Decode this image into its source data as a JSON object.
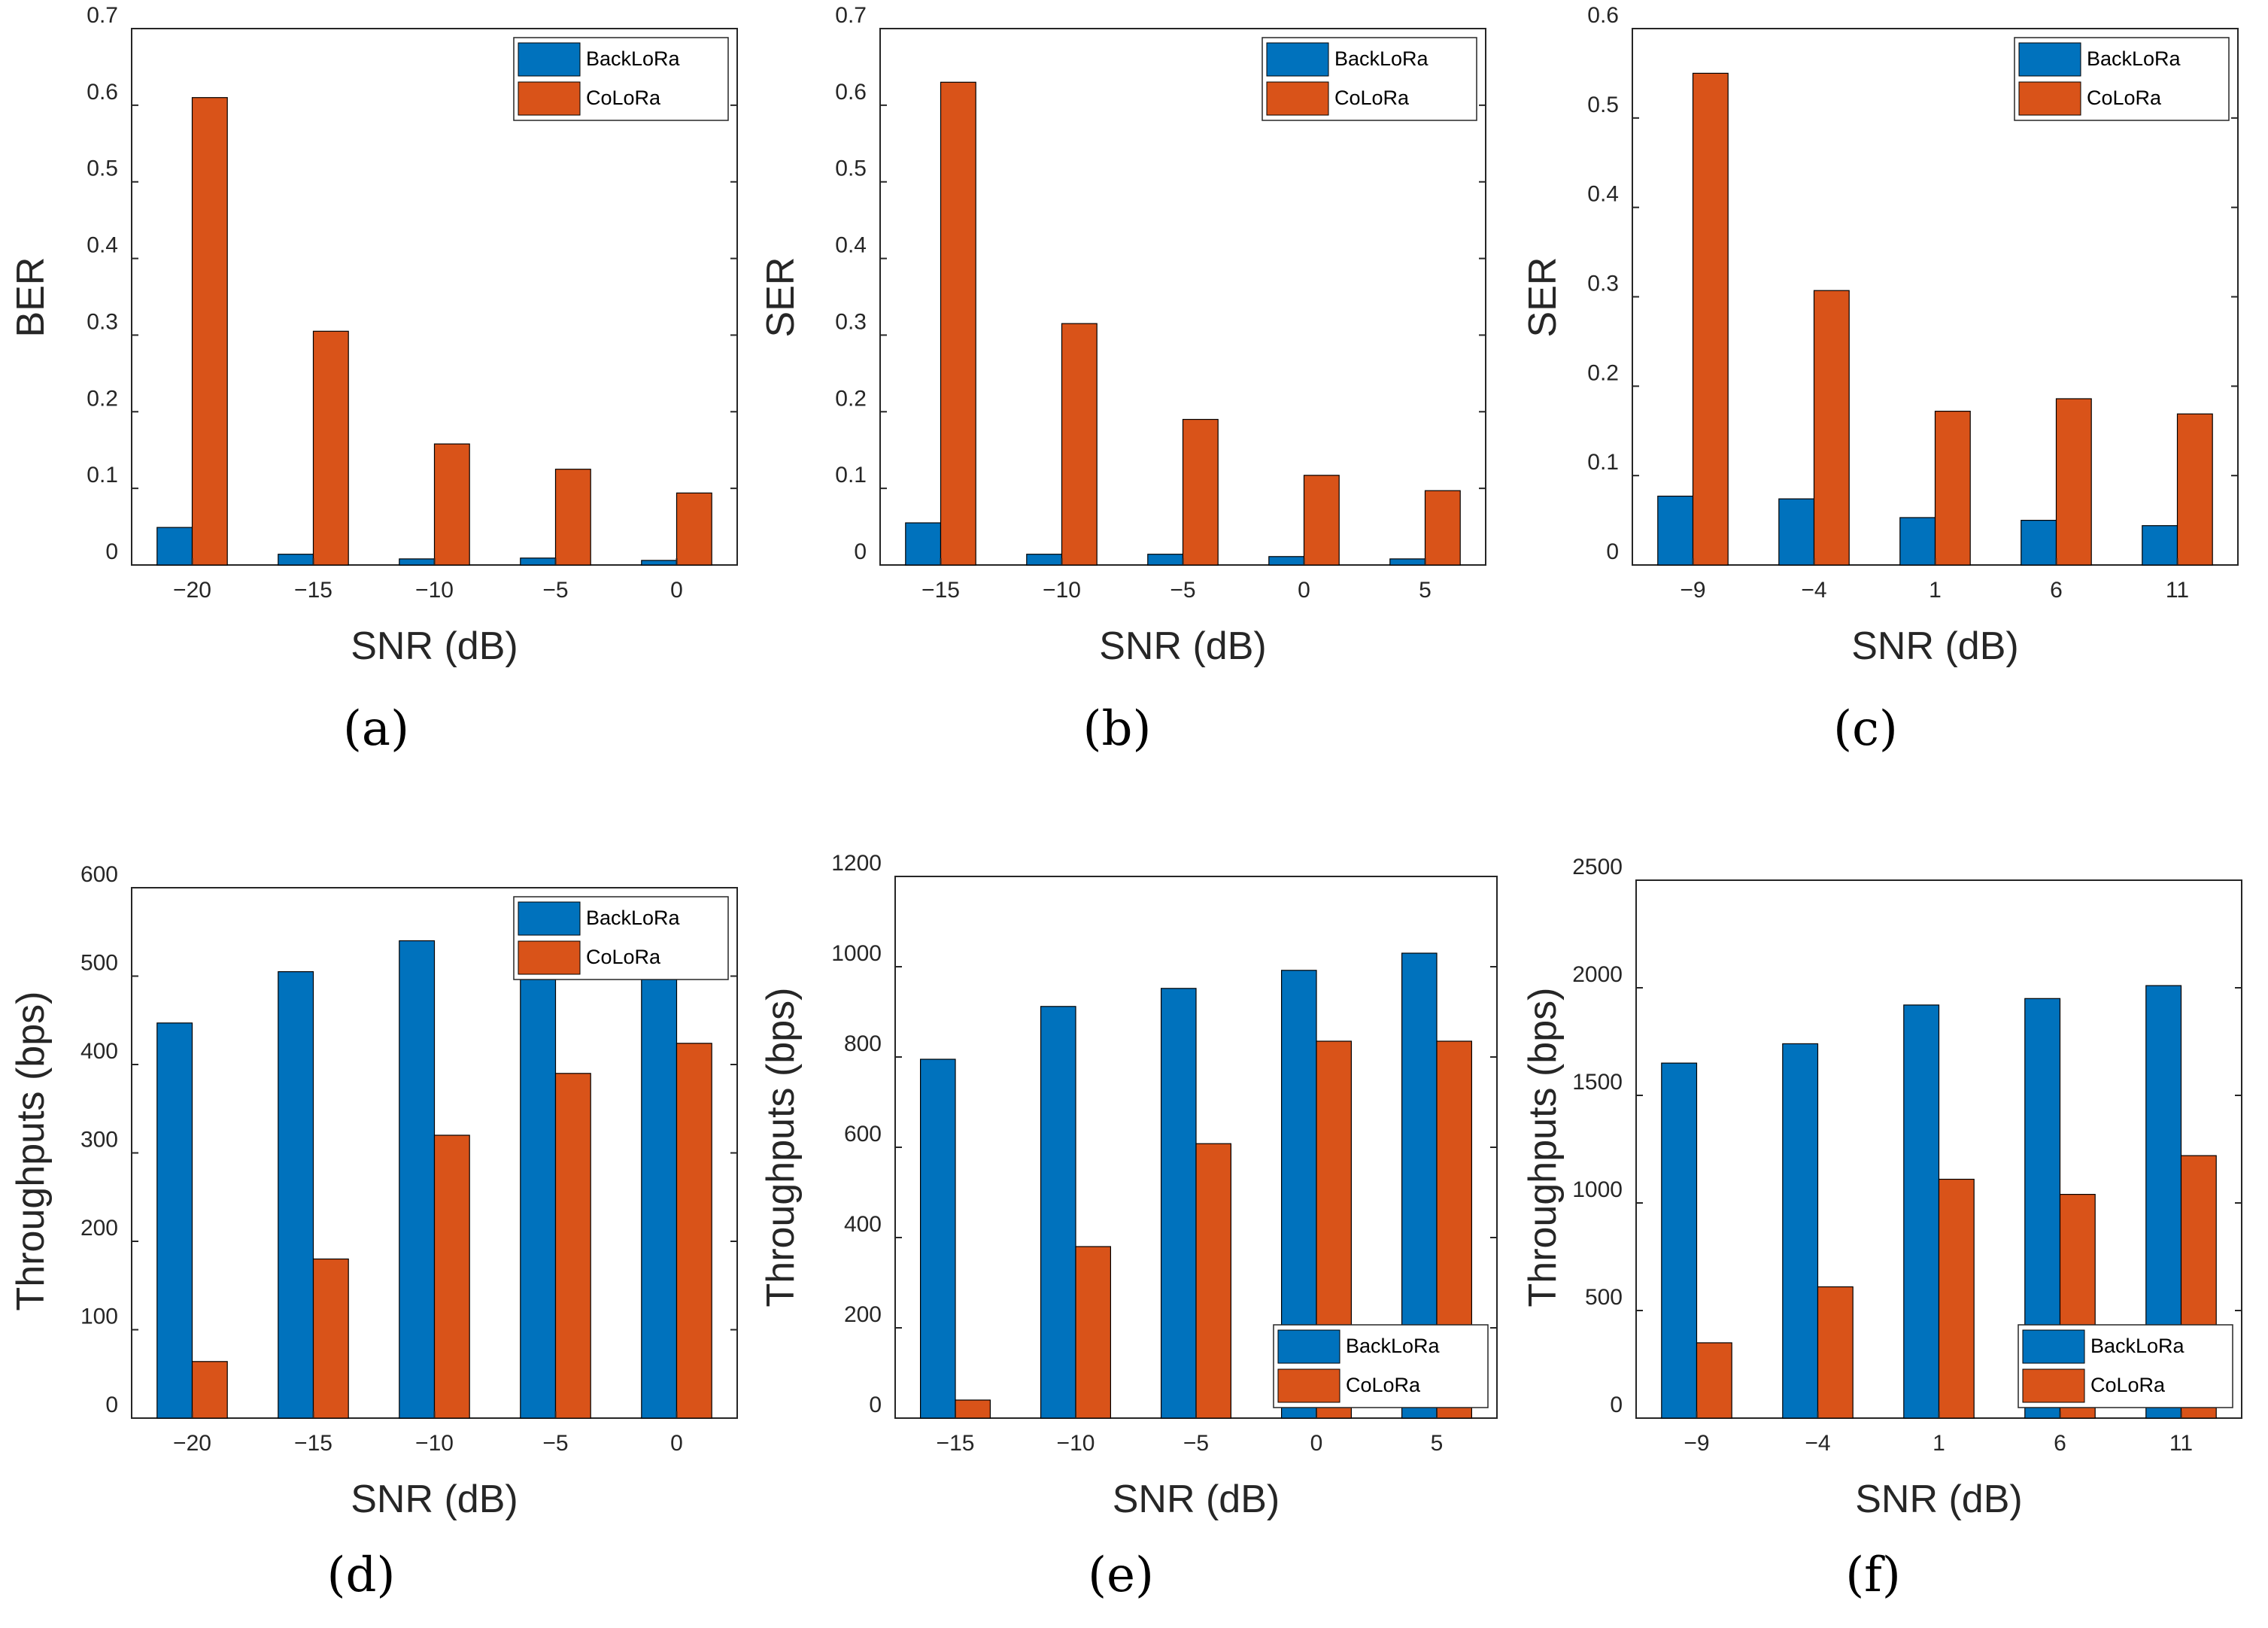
{
  "colors": {
    "BackLoRa": "#0072BD",
    "CoLoRa": "#D95319"
  },
  "chart_data": [
    {
      "type": "bar",
      "panel": "(a)",
      "xlabel": "SNR (dB)",
      "ylabel": "BER",
      "categories": [
        "−20",
        "−15",
        "−10",
        "−5",
        "0"
      ],
      "yticks": [
        "0",
        "0.1",
        "0.2",
        "0.3",
        "0.4",
        "0.5",
        "0.6",
        "0.7"
      ],
      "ylim": [
        0,
        0.7
      ],
      "legend_position": "top-right",
      "series": [
        {
          "name": "BackLoRa",
          "values": [
            0.049,
            0.014,
            0.008,
            0.009,
            0.006
          ]
        },
        {
          "name": "CoLoRa",
          "values": [
            0.61,
            0.305,
            0.158,
            0.125,
            0.094
          ]
        }
      ]
    },
    {
      "type": "bar",
      "panel": "(b)",
      "xlabel": "SNR (dB)",
      "ylabel": "SER",
      "categories": [
        "−15",
        "−10",
        "−5",
        "0",
        "5"
      ],
      "yticks": [
        "0",
        "0.1",
        "0.2",
        "0.3",
        "0.4",
        "0.5",
        "0.6",
        "0.7"
      ],
      "ylim": [
        0,
        0.7
      ],
      "legend_position": "top-right",
      "series": [
        {
          "name": "BackLoRa",
          "values": [
            0.055,
            0.014,
            0.014,
            0.011,
            0.008
          ]
        },
        {
          "name": "CoLoRa",
          "values": [
            0.63,
            0.315,
            0.19,
            0.117,
            0.097
          ]
        }
      ]
    },
    {
      "type": "bar",
      "panel": "(c)",
      "xlabel": "SNR (dB)",
      "ylabel": "SER",
      "categories": [
        "−9",
        "−4",
        "1",
        "6",
        "11"
      ],
      "yticks": [
        "0",
        "0.1",
        "0.2",
        "0.3",
        "0.4",
        "0.5",
        "0.6"
      ],
      "ylim": [
        0,
        0.6
      ],
      "legend_position": "top-right",
      "series": [
        {
          "name": "BackLoRa",
          "values": [
            0.077,
            0.074,
            0.053,
            0.05,
            0.044
          ]
        },
        {
          "name": "CoLoRa",
          "values": [
            0.55,
            0.307,
            0.172,
            0.186,
            0.169
          ]
        }
      ]
    },
    {
      "type": "bar",
      "panel": "(d)",
      "xlabel": "SNR (dB)",
      "ylabel": "Throughputs (bps)",
      "categories": [
        "−20",
        "−15",
        "−10",
        "−5",
        "0"
      ],
      "yticks": [
        "0",
        "100",
        "200",
        "300",
        "400",
        "500",
        "600"
      ],
      "ylim": [
        0,
        600
      ],
      "legend_position": "top-right",
      "series": [
        {
          "name": "BackLoRa",
          "values": [
            447,
            505,
            540,
            515,
            520
          ]
        },
        {
          "name": "CoLoRa",
          "values": [
            64,
            180,
            320,
            390,
            424
          ]
        }
      ]
    },
    {
      "type": "bar",
      "panel": "(e)",
      "xlabel": "SNR (dB)",
      "ylabel": "Throughputs (bps)",
      "categories": [
        "−15",
        "−10",
        "−5",
        "0",
        "5"
      ],
      "yticks": [
        "0",
        "200",
        "400",
        "600",
        "800",
        "1000",
        "1200"
      ],
      "ylim": [
        0,
        1200
      ],
      "legend_position": "bottom-right",
      "series": [
        {
          "name": "BackLoRa",
          "values": [
            795,
            912,
            952,
            992,
            1030
          ]
        },
        {
          "name": "CoLoRa",
          "values": [
            40,
            380,
            608,
            835,
            835
          ]
        }
      ]
    },
    {
      "type": "bar",
      "panel": "(f)",
      "xlabel": "SNR (dB)",
      "ylabel": "Throughputs (bps)",
      "categories": [
        "−9",
        "−4",
        "1",
        "6",
        "11"
      ],
      "yticks": [
        "0",
        "500",
        "1000",
        "1500",
        "2000",
        "2500"
      ],
      "ylim": [
        0,
        2500
      ],
      "legend_position": "bottom-right",
      "series": [
        {
          "name": "BackLoRa",
          "values": [
            1650,
            1740,
            1920,
            1950,
            2010
          ]
        },
        {
          "name": "CoLoRa",
          "values": [
            350,
            610,
            1110,
            1040,
            1220
          ]
        }
      ]
    }
  ]
}
